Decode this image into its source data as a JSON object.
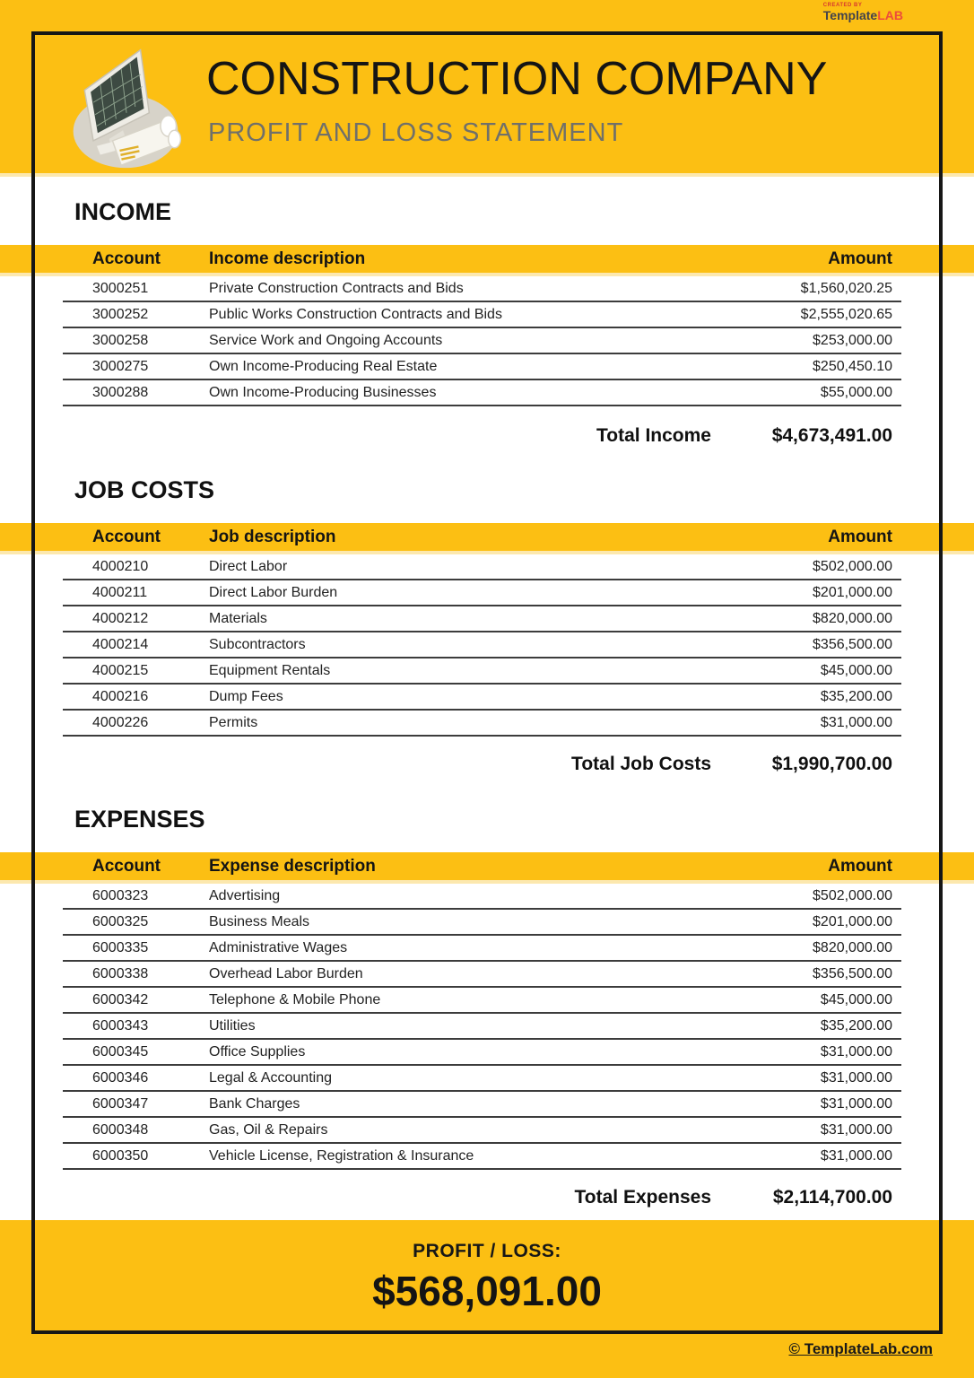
{
  "brand": {
    "tagline": "CREATED BY",
    "name_primary": "Template",
    "name_accent": "LAB"
  },
  "header": {
    "title": "CONSTRUCTION COMPANY",
    "subtitle": "PROFIT AND LOSS STATEMENT"
  },
  "colors": {
    "accent_yellow": "#FCBF13",
    "logo_red": "#ED4C3B",
    "subtitle_gray": "#70706A",
    "row_line_gray": "#3C3C3C"
  },
  "sections": [
    {
      "heading": "INCOME",
      "columns": {
        "account": "Account",
        "description": "Income description",
        "amount": "Amount"
      },
      "rows": [
        {
          "account": "3000251",
          "description": "Private Construction Contracts and Bids",
          "amount": "$1,560,020.25"
        },
        {
          "account": "3000252",
          "description": "Public Works Construction Contracts and Bids",
          "amount": "$2,555,020.65"
        },
        {
          "account": "3000258",
          "description": "Service Work and Ongoing Accounts",
          "amount": "$253,000.00"
        },
        {
          "account": "3000275",
          "description": "Own Income-Producing Real Estate",
          "amount": "$250,450.10"
        },
        {
          "account": "3000288",
          "description": "Own Income-Producing Businesses",
          "amount": "$55,000.00"
        }
      ],
      "total": {
        "label": "Total Income",
        "value": "$4,673,491.00"
      }
    },
    {
      "heading": "JOB COSTS",
      "columns": {
        "account": "Account",
        "description": "Job description",
        "amount": "Amount"
      },
      "rows": [
        {
          "account": "4000210",
          "description": "Direct Labor",
          "amount": "$502,000.00"
        },
        {
          "account": "4000211",
          "description": "Direct Labor Burden",
          "amount": "$201,000.00"
        },
        {
          "account": "4000212",
          "description": "Materials",
          "amount": "$820,000.00"
        },
        {
          "account": "4000214",
          "description": "Subcontractors",
          "amount": "$356,500.00"
        },
        {
          "account": "4000215",
          "description": "Equipment Rentals",
          "amount": "$45,000.00"
        },
        {
          "account": "4000216",
          "description": "Dump Fees",
          "amount": "$35,200.00"
        },
        {
          "account": "4000226",
          "description": "Permits",
          "amount": "$31,000.00"
        }
      ],
      "total": {
        "label": "Total Job Costs",
        "value": "$1,990,700.00"
      }
    },
    {
      "heading": "EXPENSES",
      "columns": {
        "account": "Account",
        "description": "Expense description",
        "amount": "Amount"
      },
      "rows": [
        {
          "account": "6000323",
          "description": "Advertising",
          "amount": "$502,000.00"
        },
        {
          "account": "6000325",
          "description": "Business Meals",
          "amount": "$201,000.00"
        },
        {
          "account": "6000335",
          "description": "Administrative Wages",
          "amount": "$820,000.00"
        },
        {
          "account": "6000338",
          "description": "Overhead Labor Burden",
          "amount": "$356,500.00"
        },
        {
          "account": "6000342",
          "description": "Telephone & Mobile Phone",
          "amount": "$45,000.00"
        },
        {
          "account": "6000343",
          "description": "Utilities",
          "amount": "$35,200.00"
        },
        {
          "account": "6000345",
          "description": "Office Supplies",
          "amount": "$31,000.00"
        },
        {
          "account": "6000346",
          "description": "Legal & Accounting",
          "amount": "$31,000.00"
        },
        {
          "account": "6000347",
          "description": "Bank Charges",
          "amount": "$31,000.00"
        },
        {
          "account": "6000348",
          "description": "Gas, Oil & Repairs",
          "amount": "$31,000.00"
        },
        {
          "account": "6000350",
          "description": "Vehicle License, Registration & Insurance",
          "amount": "$31,000.00"
        }
      ],
      "total": {
        "label": "Total Expenses",
        "value": "$2,114,700.00"
      }
    }
  ],
  "footer": {
    "profit_label": "PROFIT / LOSS:",
    "profit_value": "$568,091.00",
    "credit_link": "© TemplateLab.com"
  }
}
